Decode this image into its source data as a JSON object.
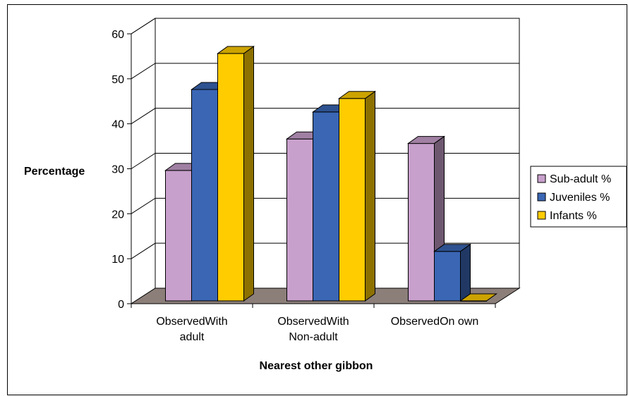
{
  "chart_data": {
    "type": "bar",
    "three_d": true,
    "title": "",
    "xlabel": "Nearest other gibbon",
    "ylabel": "Percentage",
    "ylim": [
      0,
      60
    ],
    "yticks": [
      "0",
      "10",
      "20",
      "30",
      "40",
      "50",
      "60"
    ],
    "categories": [
      [
        "ObservedWith",
        "adult"
      ],
      [
        "ObservedWith",
        "Non-adult"
      ],
      [
        "ObservedOn own"
      ]
    ],
    "series": [
      {
        "name": "Sub-adult %",
        "color": "#c8a0cc",
        "values": [
          29,
          36,
          35
        ]
      },
      {
        "name": "Juveniles %",
        "color": "#3a66b4",
        "values": [
          47,
          42,
          11
        ]
      },
      {
        "name": "Infants %",
        "color": "#ffcc00",
        "values": [
          55,
          45,
          0
        ]
      }
    ],
    "grid": true,
    "legend_position": "right"
  }
}
